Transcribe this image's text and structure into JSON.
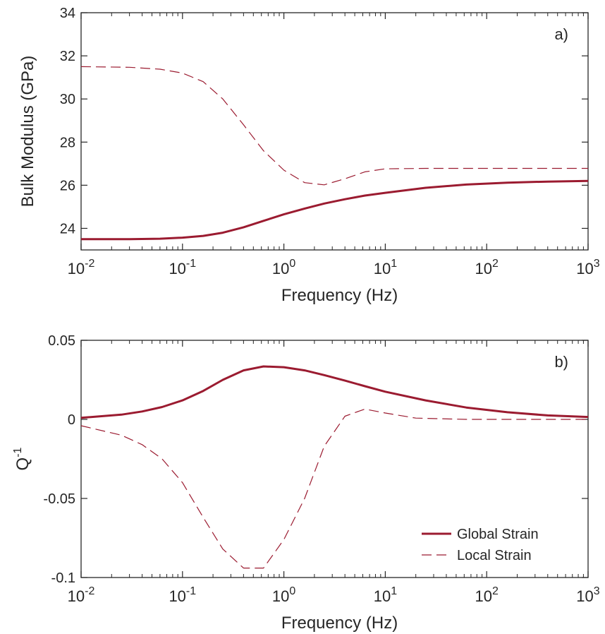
{
  "colors": {
    "series": "#9b1b30",
    "axis": "#262626"
  },
  "chart_data": [
    {
      "type": "line",
      "panel_label": "a)",
      "xlabel": "Frequency (Hz)",
      "ylabel": "Bulk Modulus (GPa)",
      "x_scale": "log",
      "xlim": [
        0.01,
        1000
      ],
      "ylim": [
        23,
        34
      ],
      "x_ticks": [
        {
          "value": 0.01,
          "base": "10",
          "exp": "-2"
        },
        {
          "value": 0.1,
          "base": "10",
          "exp": "-1"
        },
        {
          "value": 1,
          "base": "10",
          "exp": "0"
        },
        {
          "value": 10,
          "base": "10",
          "exp": "1"
        },
        {
          "value": 100,
          "base": "10",
          "exp": "2"
        },
        {
          "value": 1000,
          "base": "10",
          "exp": "3"
        }
      ],
      "y_ticks": [
        {
          "value": 24,
          "label": "24"
        },
        {
          "value": 26,
          "label": "26"
        },
        {
          "value": 28,
          "label": "28"
        },
        {
          "value": 30,
          "label": "30"
        },
        {
          "value": 32,
          "label": "32"
        },
        {
          "value": 34,
          "label": "34"
        }
      ],
      "grid": false,
      "series": [
        {
          "style": "solid",
          "x": [
            0.01,
            0.03,
            0.06,
            0.1,
            0.16,
            0.25,
            0.4,
            0.63,
            1,
            1.6,
            2.5,
            4,
            6.3,
            10,
            25,
            63,
            160,
            400,
            1000
          ],
          "y": [
            23.5,
            23.5,
            23.52,
            23.57,
            23.65,
            23.8,
            24.05,
            24.35,
            24.65,
            24.92,
            25.15,
            25.35,
            25.52,
            25.65,
            25.88,
            26.03,
            26.12,
            26.17,
            26.2
          ]
        },
        {
          "style": "dashed",
          "x": [
            0.01,
            0.03,
            0.06,
            0.1,
            0.16,
            0.25,
            0.4,
            0.63,
            1,
            1.6,
            2.5,
            4,
            6.3,
            10,
            25,
            100,
            1000
          ],
          "y": [
            31.5,
            31.47,
            31.38,
            31.2,
            30.8,
            30.0,
            28.8,
            27.6,
            26.7,
            26.12,
            26.02,
            26.3,
            26.62,
            26.76,
            26.78,
            26.78,
            26.78
          ]
        }
      ]
    },
    {
      "type": "line",
      "panel_label": "b)",
      "xlabel": "Frequency (Hz)",
      "ylabel_base": "Q",
      "ylabel_sup": "-1",
      "x_scale": "log",
      "xlim": [
        0.01,
        1000
      ],
      "ylim": [
        -0.1,
        0.05
      ],
      "x_ticks": [
        {
          "value": 0.01,
          "base": "10",
          "exp": "-2"
        },
        {
          "value": 0.1,
          "base": "10",
          "exp": "-1"
        },
        {
          "value": 1,
          "base": "10",
          "exp": "0"
        },
        {
          "value": 10,
          "base": "10",
          "exp": "1"
        },
        {
          "value": 100,
          "base": "10",
          "exp": "2"
        },
        {
          "value": 1000,
          "base": "10",
          "exp": "3"
        }
      ],
      "y_ticks": [
        {
          "value": -0.1,
          "label": "-0.1"
        },
        {
          "value": -0.05,
          "label": "-0.05"
        },
        {
          "value": 0,
          "label": "0"
        },
        {
          "value": 0.05,
          "label": "0.05"
        }
      ],
      "grid": false,
      "legend": {
        "position": "bottom-right",
        "entries": [
          {
            "label": "Global Strain",
            "style": "solid"
          },
          {
            "label": "Local Strain",
            "style": "dashed"
          }
        ]
      },
      "series": [
        {
          "name": "Global Strain",
          "style": "solid",
          "x": [
            0.01,
            0.025,
            0.04,
            0.063,
            0.1,
            0.16,
            0.25,
            0.4,
            0.63,
            1,
            1.6,
            2.5,
            4,
            6.3,
            10,
            25,
            63,
            160,
            400,
            1000
          ],
          "y": [
            0.001,
            0.003,
            0.005,
            0.0078,
            0.012,
            0.018,
            0.025,
            0.031,
            0.0335,
            0.033,
            0.031,
            0.028,
            0.0245,
            0.021,
            0.0175,
            0.012,
            0.0075,
            0.0045,
            0.0025,
            0.0015
          ]
        },
        {
          "name": "Local Strain",
          "style": "dashed",
          "x": [
            0.01,
            0.025,
            0.04,
            0.063,
            0.1,
            0.16,
            0.25,
            0.4,
            0.63,
            1,
            1.6,
            2.5,
            4,
            6.3,
            10,
            20,
            63,
            250,
            1000
          ],
          "y": [
            -0.004,
            -0.01,
            -0.016,
            -0.025,
            -0.04,
            -0.062,
            -0.082,
            -0.094,
            -0.094,
            -0.076,
            -0.05,
            -0.017,
            0.002,
            0.0065,
            0.004,
            0.0008,
            0.0,
            0.0,
            0.0
          ]
        }
      ]
    }
  ]
}
